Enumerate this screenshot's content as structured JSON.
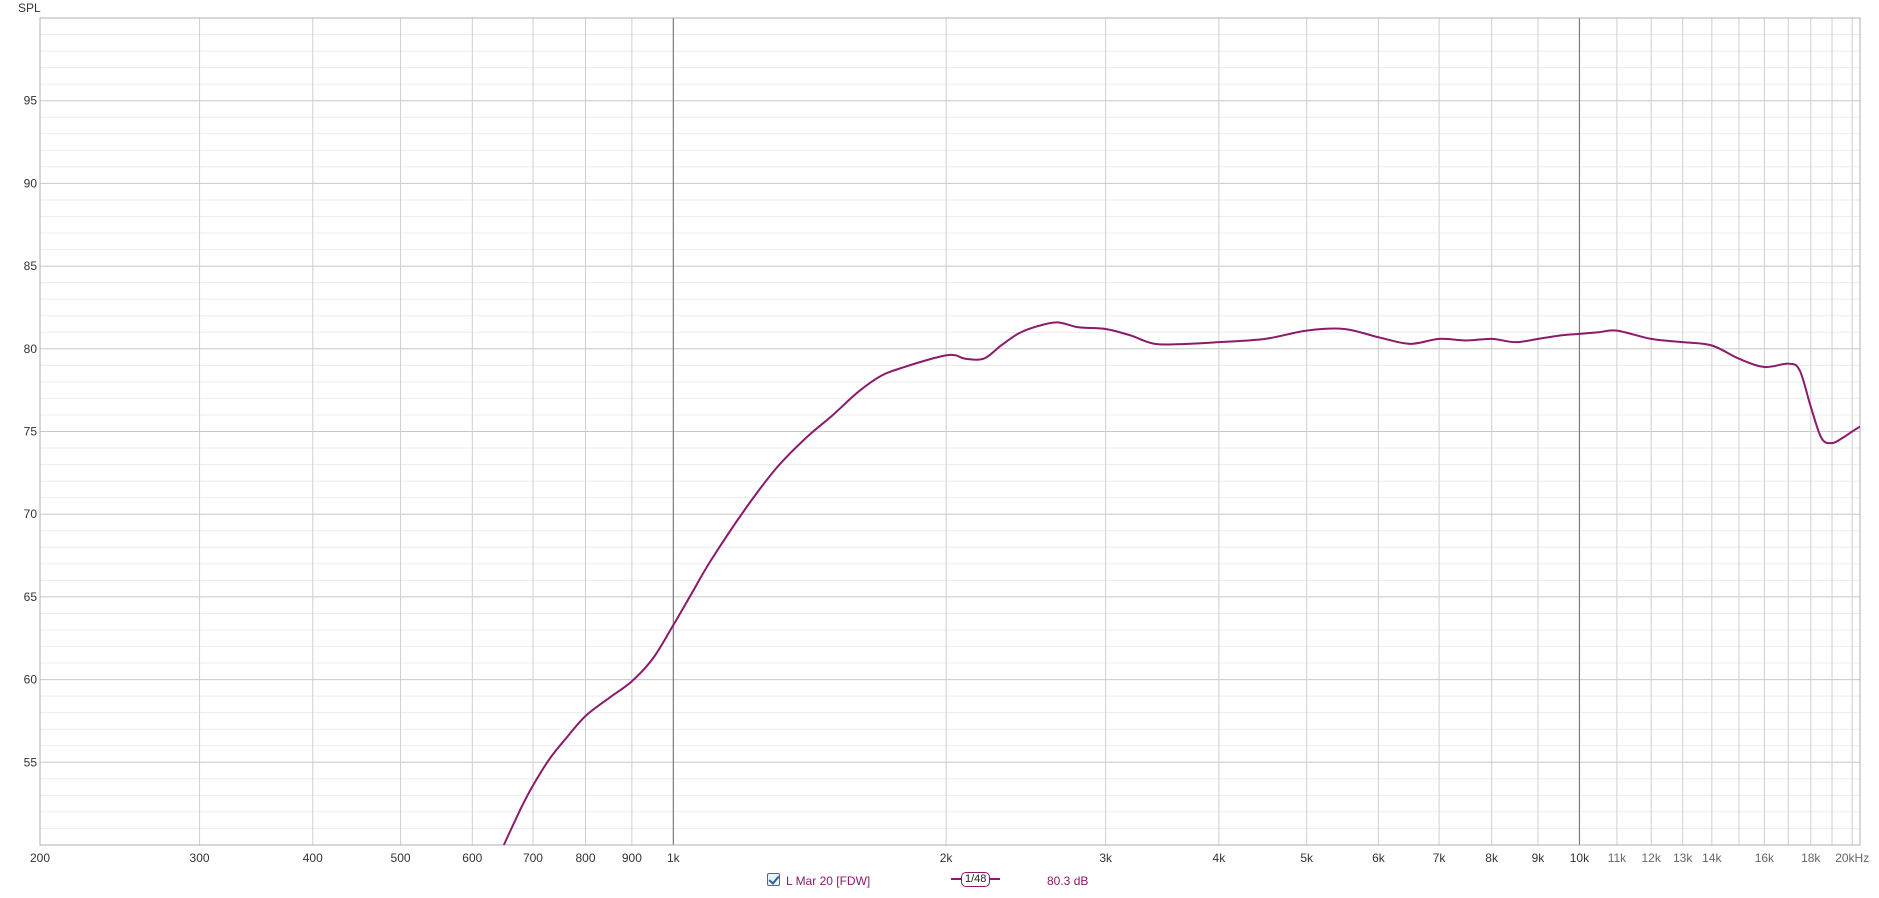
{
  "chart_data": {
    "type": "line",
    "ylabel": "SPL",
    "xlabel": "",
    "xscale": "log",
    "xlim": [
      200,
      20400
    ],
    "ylim": [
      50,
      100
    ],
    "y_ticks": [
      "55",
      "60",
      "65",
      "70",
      "75",
      "80",
      "85",
      "90",
      "95"
    ],
    "x_ticks": [
      {
        "f": 200,
        "label": "200",
        "major": true
      },
      {
        "f": 300,
        "label": "300",
        "major": true
      },
      {
        "f": 400,
        "label": "400",
        "major": true
      },
      {
        "f": 500,
        "label": "500",
        "major": true
      },
      {
        "f": 600,
        "label": "600",
        "major": true
      },
      {
        "f": 700,
        "label": "700",
        "major": true
      },
      {
        "f": 800,
        "label": "800",
        "major": true
      },
      {
        "f": 900,
        "label": "900",
        "major": true
      },
      {
        "f": 1000,
        "label": "1k",
        "major": true
      },
      {
        "f": 2000,
        "label": "2k",
        "major": true
      },
      {
        "f": 3000,
        "label": "3k",
        "major": true
      },
      {
        "f": 4000,
        "label": "4k",
        "major": true
      },
      {
        "f": 5000,
        "label": "5k",
        "major": true
      },
      {
        "f": 6000,
        "label": "6k",
        "major": true
      },
      {
        "f": 7000,
        "label": "7k",
        "major": true
      },
      {
        "f": 8000,
        "label": "8k",
        "major": true
      },
      {
        "f": 9000,
        "label": "9k",
        "major": true
      },
      {
        "f": 10000,
        "label": "10k",
        "major": true
      },
      {
        "f": 11000,
        "label": "11k",
        "major": false
      },
      {
        "f": 12000,
        "label": "12k",
        "major": false
      },
      {
        "f": 13000,
        "label": "13k",
        "major": false
      },
      {
        "f": 14000,
        "label": "14k",
        "major": false
      },
      {
        "f": 16000,
        "label": "16k",
        "major": false
      },
      {
        "f": 18000,
        "label": "18k",
        "major": false
      },
      {
        "f": 20000,
        "label": "20kHz",
        "major": false
      }
    ],
    "grid": true,
    "series": [
      {
        "name": "L Mar 20 [FDW]",
        "color": "#8b1a6b",
        "points": [
          [
            650,
            50.0
          ],
          [
            680,
            52.3
          ],
          [
            700,
            53.6
          ],
          [
            730,
            55.2
          ],
          [
            760,
            56.4
          ],
          [
            800,
            57.8
          ],
          [
            850,
            58.9
          ],
          [
            900,
            59.9
          ],
          [
            950,
            61.3
          ],
          [
            1000,
            63.3
          ],
          [
            1050,
            65.3
          ],
          [
            1100,
            67.2
          ],
          [
            1200,
            70.3
          ],
          [
            1300,
            72.8
          ],
          [
            1400,
            74.6
          ],
          [
            1500,
            76.0
          ],
          [
            1600,
            77.4
          ],
          [
            1700,
            78.4
          ],
          [
            1800,
            78.9
          ],
          [
            1900,
            79.3
          ],
          [
            2000,
            79.6
          ],
          [
            2050,
            79.6
          ],
          [
            2100,
            79.4
          ],
          [
            2200,
            79.4
          ],
          [
            2300,
            80.2
          ],
          [
            2400,
            80.9
          ],
          [
            2500,
            81.3
          ],
          [
            2650,
            81.6
          ],
          [
            2800,
            81.3
          ],
          [
            3000,
            81.2
          ],
          [
            3200,
            80.8
          ],
          [
            3400,
            80.3
          ],
          [
            3700,
            80.3
          ],
          [
            4000,
            80.4
          ],
          [
            4500,
            80.6
          ],
          [
            5000,
            81.1
          ],
          [
            5500,
            81.2
          ],
          [
            6000,
            80.7
          ],
          [
            6500,
            80.3
          ],
          [
            7000,
            80.6
          ],
          [
            7500,
            80.5
          ],
          [
            8000,
            80.6
          ],
          [
            8500,
            80.4
          ],
          [
            9000,
            80.6
          ],
          [
            9500,
            80.8
          ],
          [
            10000,
            80.9
          ],
          [
            10500,
            81.0
          ],
          [
            11000,
            81.1
          ],
          [
            12000,
            80.6
          ],
          [
            13000,
            80.4
          ],
          [
            14000,
            80.2
          ],
          [
            15000,
            79.4
          ],
          [
            16000,
            78.9
          ],
          [
            17000,
            79.1
          ],
          [
            17500,
            78.7
          ],
          [
            18000,
            76.5
          ],
          [
            18500,
            74.6
          ],
          [
            19000,
            74.3
          ],
          [
            19500,
            74.6
          ],
          [
            20000,
            75.0
          ],
          [
            20400,
            75.3
          ]
        ]
      }
    ]
  },
  "legend": {
    "series_name": "L Mar 20 [FDW]",
    "smoothing": "1/48",
    "value": "80.3 dB",
    "checked": true
  }
}
